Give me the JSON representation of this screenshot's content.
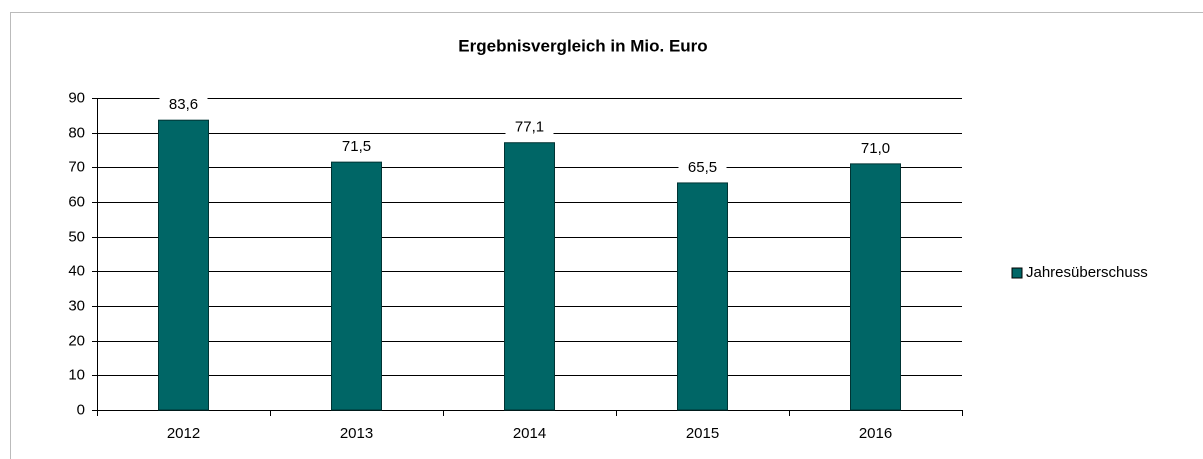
{
  "chart_data": {
    "type": "bar",
    "title": "Ergebnisvergleich in Mio. Euro",
    "categories": [
      "2012",
      "2013",
      "2014",
      "2015",
      "2016"
    ],
    "series": [
      {
        "name": "Jahresüberschuss",
        "color": "#006666",
        "values": [
          83.6,
          71.5,
          77.1,
          65.5,
          71.0
        ],
        "value_labels": [
          "83,6",
          "71,5",
          "77,1",
          "65,5",
          "71,0"
        ]
      }
    ],
    "ylim": [
      0,
      90
    ],
    "yticks": [
      0,
      10,
      20,
      30,
      40,
      50,
      60,
      70,
      80,
      90
    ],
    "grid": true,
    "legend": "right"
  }
}
